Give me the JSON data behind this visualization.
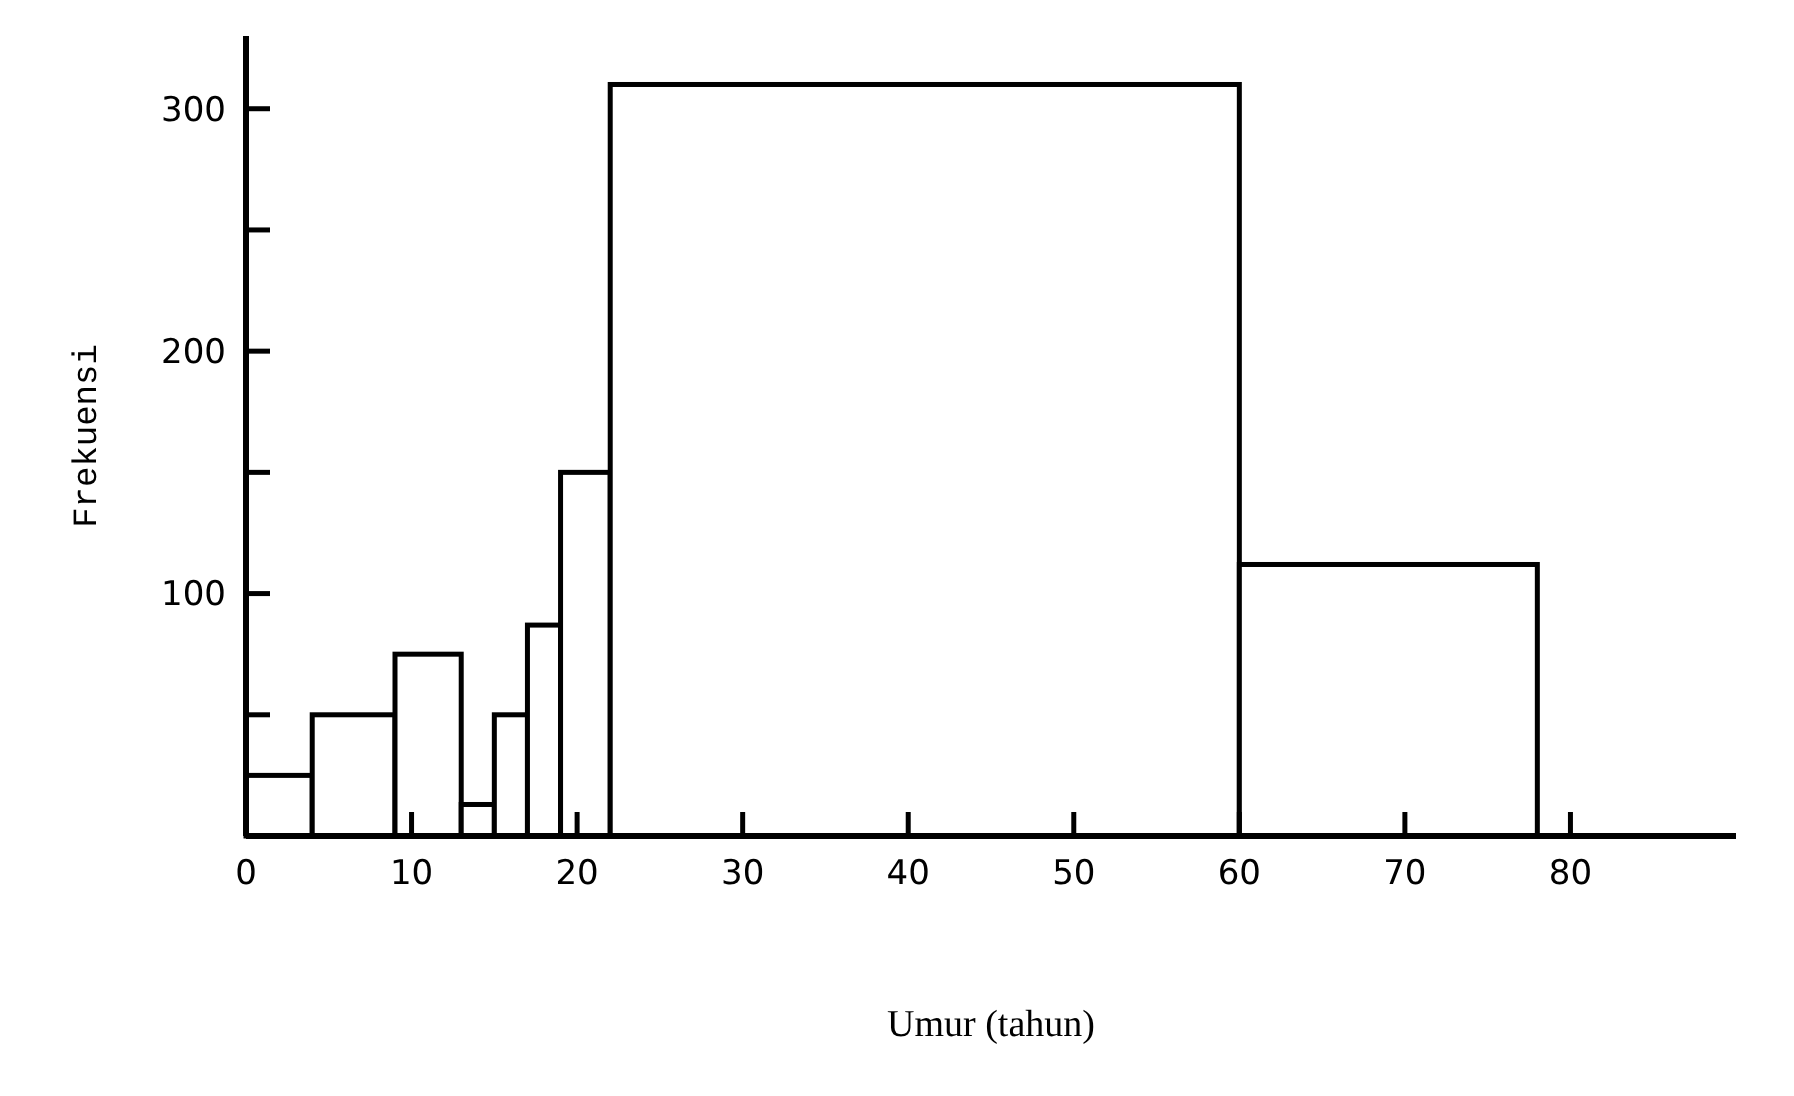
{
  "chart_data": {
    "type": "histogram",
    "xlabel": "Umur (tahun)",
    "ylabel": "Frekuensi",
    "bins": [
      0,
      4,
      9,
      13,
      15,
      17,
      19,
      22,
      60,
      78
    ],
    "values": [
      25,
      50,
      75,
      13,
      50,
      87,
      150,
      310,
      112
    ],
    "color": "#ffffff",
    "xlim": [
      0,
      90
    ],
    "xticks": [
      0,
      10,
      20,
      30,
      40,
      50,
      60,
      70,
      80
    ],
    "ylim": [
      0,
      330
    ],
    "yticks": [
      {
        "value": 50,
        "label": null
      },
      100,
      {
        "value": 150,
        "label": null
      },
      200,
      {
        "value": 250,
        "label": null
      },
      300
    ],
    "grid": false
  }
}
